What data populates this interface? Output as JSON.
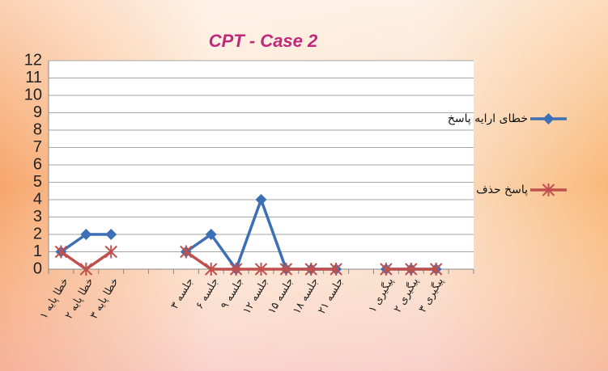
{
  "chart_data": {
    "type": "line",
    "title": "CPT - Case 2",
    "categories": [
      "خطا پایه ۱",
      "خطا پایه ۲",
      "خطا پایه ۳",
      null,
      null,
      "جلسه ۳",
      "جلسه ۶",
      "جلسه ۹",
      "جلسه ۱۲",
      "جلسه ۱۵",
      "جلسه ۱۸",
      "جلسه ۲۱",
      null,
      "پیگیری ۱",
      "پیگیری ۲",
      "پیگیری ۳",
      null
    ],
    "series": [
      {
        "name": "خطای ارایه پاسخ",
        "color": "#3d6fb6",
        "values": [
          1,
          2,
          2,
          null,
          null,
          1,
          2,
          0,
          4,
          0,
          0,
          0,
          null,
          0,
          0,
          0,
          null
        ]
      },
      {
        "name": "پاسخ حذف",
        "color": "#c0504d",
        "values": [
          1,
          0,
          1,
          null,
          null,
          1,
          0,
          0,
          0,
          0,
          0,
          0,
          null,
          0,
          0,
          0,
          null
        ]
      }
    ],
    "ylim": [
      0,
      12
    ],
    "yticks": [
      0,
      1,
      2,
      3,
      4,
      5,
      6,
      7,
      8,
      9,
      10,
      11,
      12
    ],
    "grid": true,
    "legend": "right"
  }
}
